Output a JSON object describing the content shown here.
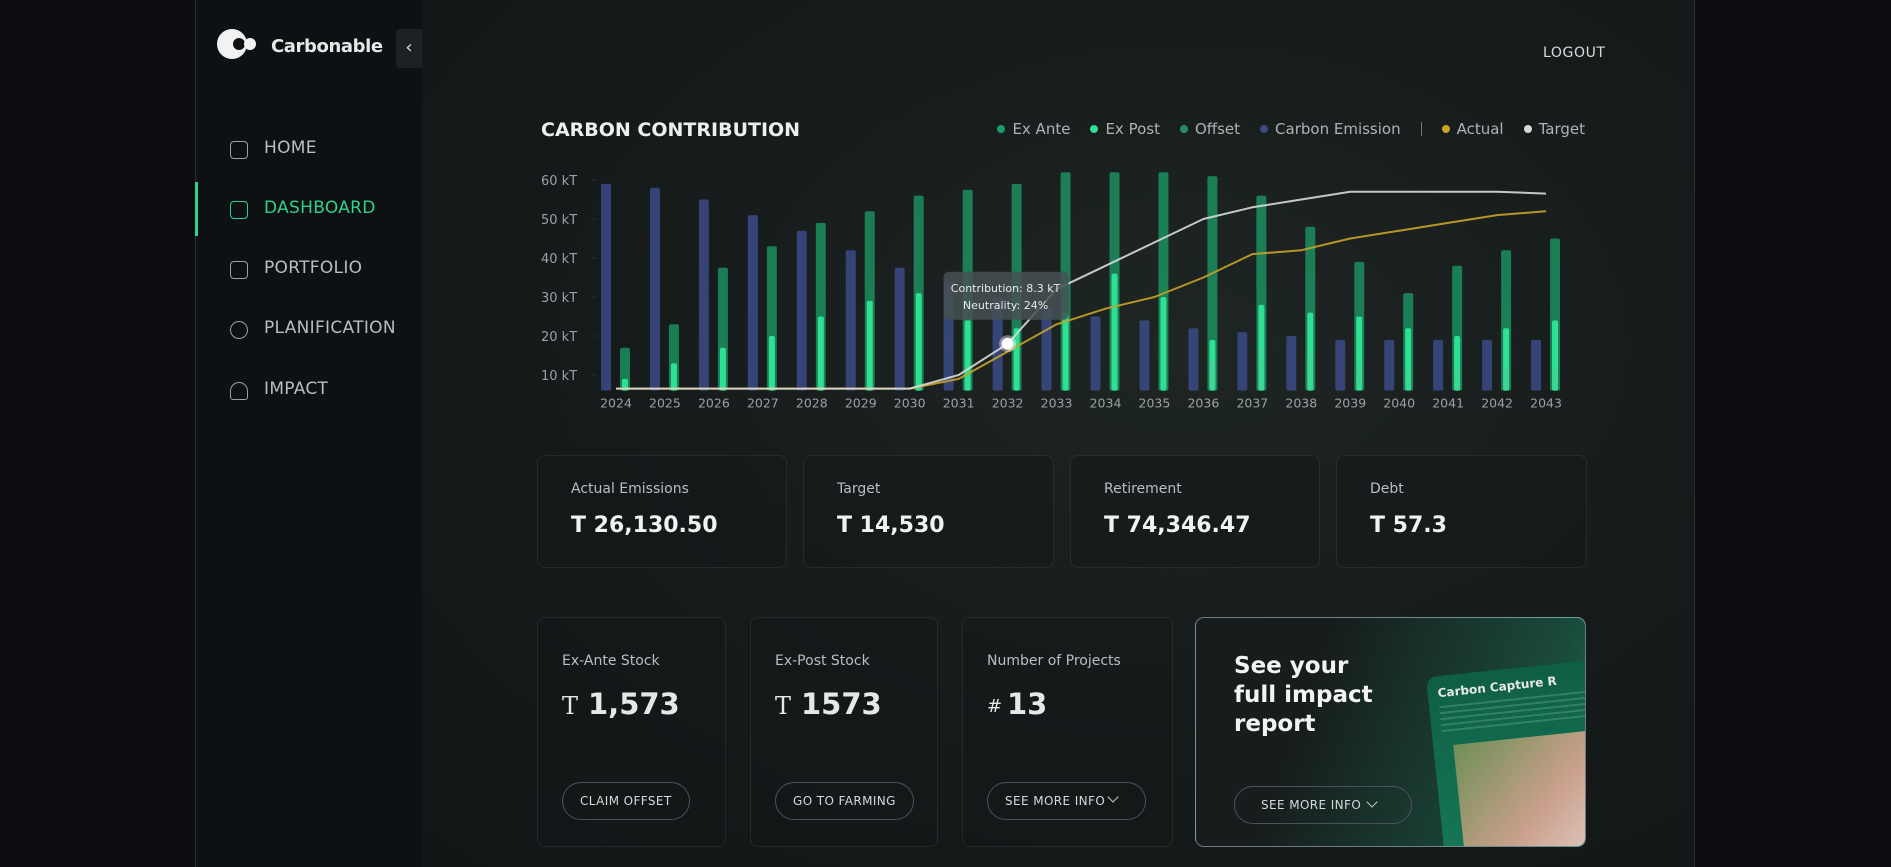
{
  "brand": "Carbonable",
  "nav": [
    "HOME",
    "DASHBOARD",
    "PORTFOLIO",
    "PLANIFICATION",
    "IMPACT"
  ],
  "logout": "LOGOUT",
  "chart_data": {
    "type": "bar",
    "title": "CARBON CONTRIBUTION",
    "categories": [
      "2024",
      "2025",
      "2026",
      "2027",
      "2028",
      "2029",
      "2030",
      "2031",
      "2032",
      "2033",
      "2034",
      "2035",
      "2036",
      "2037",
      "2038",
      "2039",
      "2040",
      "2041",
      "2042",
      "2043"
    ],
    "series": [
      {
        "name": "Ex Ante",
        "color": "#1c9d68",
        "values": [
          17,
          23,
          37.5,
          43,
          49,
          52,
          56,
          57.5,
          59,
          62,
          62,
          62,
          61,
          56,
          48,
          39,
          31,
          38,
          42,
          45
        ]
      },
      {
        "name": "Ex Post",
        "color": "#2ee093",
        "values": [
          9,
          13,
          17,
          20,
          25,
          29,
          31,
          24,
          22,
          26,
          36,
          30,
          19,
          28,
          26,
          25,
          22,
          20,
          22,
          24
        ]
      },
      {
        "name": "Offset",
        "color": "#2a8a5f",
        "values": [
          null,
          null,
          null,
          null,
          null,
          null,
          null,
          null,
          null,
          null,
          null,
          null,
          14,
          17,
          16,
          13,
          12,
          12,
          12,
          12
        ]
      },
      {
        "name": "Carbon Emission",
        "color": "#3b4a86",
        "values": [
          59,
          58,
          55,
          51,
          47,
          42,
          37.5,
          34,
          30,
          27,
          25,
          24,
          22,
          21,
          20,
          19,
          19,
          19,
          19,
          19
        ]
      },
      {
        "name": "Actual",
        "type": "line",
        "color": "#c9a227",
        "values": [
          6.5,
          6.5,
          6.5,
          6.5,
          6.5,
          6.5,
          6.5,
          9,
          16,
          23,
          27,
          30,
          35,
          41,
          42,
          45,
          47,
          49,
          51,
          52
        ]
      },
      {
        "name": "Target",
        "type": "line",
        "color": "#d9d9d9",
        "values": [
          6.5,
          6.5,
          6.5,
          6.5,
          6.5,
          6.5,
          6.5,
          10,
          18,
          32,
          38,
          44,
          50,
          53,
          55,
          57,
          57,
          57,
          57,
          56.5
        ]
      }
    ],
    "ylim": [
      6,
      62
    ],
    "yticks": [
      {
        "value": 10,
        "label": "10 kT"
      },
      {
        "value": 20,
        "label": "20 kT"
      },
      {
        "value": 30,
        "label": "30 kT"
      },
      {
        "value": 40,
        "label": "40 kT"
      },
      {
        "value": 50,
        "label": "50 kT"
      },
      {
        "value": 60,
        "label": "60 kT"
      }
    ],
    "tooltip": [
      "Contribution: 8.3 kT",
      "Neutrality: 24%"
    ]
  },
  "stats": [
    {
      "label": "Actual Emissions",
      "value": "T 26,130.50"
    },
    {
      "label": "Target",
      "value": "T 14,530"
    },
    {
      "label": "Retirement",
      "value": "T 74,346.47"
    },
    {
      "label": "Debt",
      "value": "T 57.3"
    }
  ],
  "stocks": [
    {
      "label": "Ex-Ante Stock",
      "unit": "T",
      "value": "1,573",
      "button": "CLAIM OFFSET"
    },
    {
      "label": "Ex-Post Stock",
      "unit": "T",
      "value": "1573",
      "button": "GO TO FARMING"
    },
    {
      "label": "Number of Projects",
      "unit": "#",
      "value": "13",
      "button": "SEE MORE INFO"
    }
  ],
  "report": {
    "title": "See your full impact report",
    "button": "SEE MORE INFO",
    "preview_title": "Carbon Capture R"
  }
}
